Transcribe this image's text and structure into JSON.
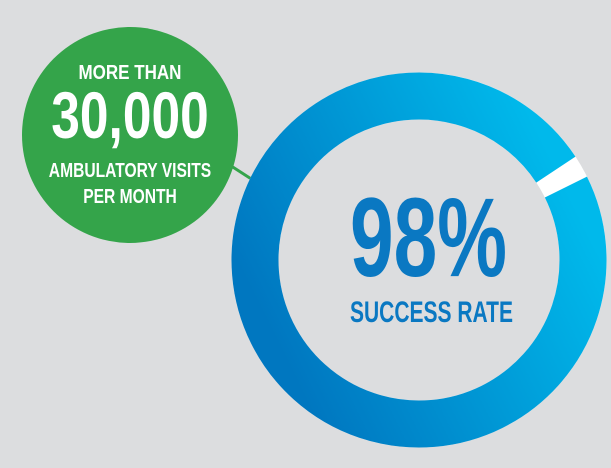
{
  "colors": {
    "background": "#dcdddf",
    "green_badge": "#34a44a",
    "ring_gradient_start": "#0077c0",
    "ring_gradient_end": "#00b9eb",
    "ring_gap": "#ffffff",
    "text_blue": "#0a78c2"
  },
  "visits_badge": {
    "line1": "MORE THAN",
    "number": "30,000",
    "line2": "AMBULATORY VISITS",
    "line3": "PER MONTH"
  },
  "success_ring": {
    "value_label": "98%",
    "caption": "SUCCESS RATE",
    "fill_percent": 98
  }
}
